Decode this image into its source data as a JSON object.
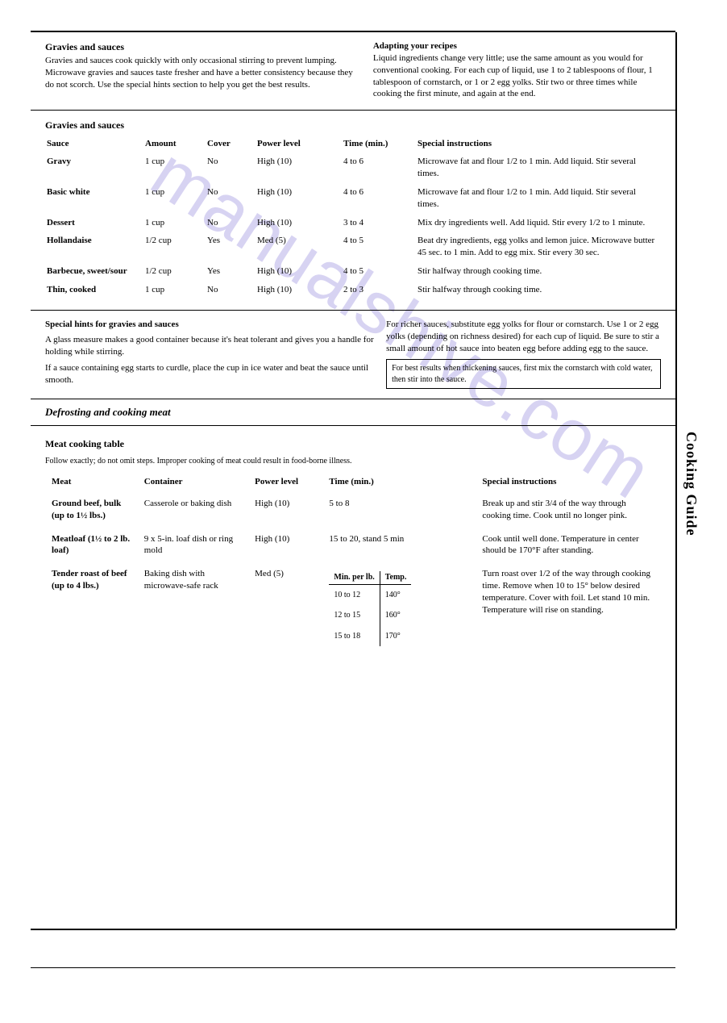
{
  "side_tab": "Cooking Guide",
  "watermark": "manualshive.com",
  "sauces": {
    "intro_title": "Gravies and sauces",
    "intro_text": "Gravies and sauces cook quickly with only occasional stirring to prevent lumping. Microwave gravies and sauces taste fresher and have a better consistency because they do not scorch. Use the special hints section to help you get the best results.",
    "intro_right_heading": "Adapting your recipes",
    "intro_right_text": "Liquid ingredients change very little; use the same amount as you would for conventional cooking. For each cup of liquid, use 1 to 2 tablespoons of flour, 1 tablespoon of cornstarch, or 1 or 2 egg yolks. Stir two or three times while cooking the first minute, and again at the end.",
    "table_heading": "Gravies and sauces",
    "cols": [
      "Sauce",
      "Amount",
      "Cover",
      "Power level",
      "Time (min.)",
      "Special instructions"
    ],
    "rows": [
      {
        "sauce": "Gravy",
        "amount": "1 cup",
        "cover": "No",
        "power": "High (10)",
        "time": "4 to 6",
        "instr": "Microwave fat and flour 1/2 to 1 min. Add liquid. Stir several times."
      },
      {
        "sauce": "Basic white",
        "amount": "1 cup",
        "cover": "No",
        "power": "High (10)",
        "time": "4 to 6",
        "instr": "Microwave fat and flour 1/2 to 1 min. Add liquid. Stir several times."
      },
      {
        "sauce": "Dessert",
        "amount": "1 cup",
        "cover": "No",
        "power": "High (10)",
        "time": "3 to 4",
        "instr": "Mix dry ingredients well. Add liquid. Stir every 1/2 to 1 minute."
      },
      {
        "sauce": "Hollandaise",
        "amount": "1/2 cup",
        "cover": "Yes",
        "power": "Med (5)",
        "time": "4 to 5",
        "instr": "Beat dry ingredients, egg yolks and lemon juice. Microwave butter 45 sec. to 1 min. Add to egg mix. Stir every 30 sec."
      },
      {
        "sauce": "Barbecue, sweet/sour",
        "amount": "1/2 cup",
        "cover": "Yes",
        "power": "High (10)",
        "time": "4 to 5",
        "instr": "Stir halfway through cooking time."
      },
      {
        "sauce": "Thin, cooked",
        "amount": "1 cup",
        "cover": "No",
        "power": "High (10)",
        "time": "2 to 3",
        "instr": "Stir halfway through cooking time."
      }
    ],
    "hints_title": "Special hints for gravies and sauces",
    "hints": [
      "A glass measure makes a good container because it's heat tolerant and gives you a handle for holding while stirring.",
      "If a sauce containing egg starts to curdle, place the cup in ice water and beat the sauce until smooth.",
      "For richer sauces, substitute egg yolks for flour or cornstarch. Use 1 or 2 egg yolks (depending on richness desired) for each cup of liquid. Be sure to stir a small amount of hot sauce into beaten egg before adding egg to the sauce."
    ],
    "hint_box": "For best results when thickening sauces, first mix the cornstarch with cold water, then stir into the sauce."
  },
  "defrost_heading": "Defrosting and cooking meat",
  "meat": {
    "title": "Meat cooking table",
    "subtitle": "Follow exactly; do not omit steps. Improper cooking of meat could result in food-borne illness.",
    "cols": [
      "Meat",
      "Container",
      "Power level",
      "Time (min.)",
      "Special instructions"
    ],
    "rows": [
      {
        "meat": "Ground beef, bulk (up to 1½ lbs.)",
        "container": "Casserole or baking dish",
        "power": "High (10)",
        "time": "5 to 8",
        "instr": "Break up and stir 3/4 of the way through cooking time. Cook until no longer pink."
      },
      {
        "meat": "Meatloaf (1½ to 2 lb. loaf)",
        "container": "9 x 5-in. loaf dish or ring mold",
        "power": "High (10)",
        "time": "15 to 20, stand 5 min",
        "instr": "Cook until well done. Temperature in center should be 170°F after standing."
      },
      {
        "meat": "Tender roast of beef (up to 4 lbs.)",
        "container": "Baking dish with microwave-safe rack",
        "power": "Med (5)",
        "table": {
          "head": [
            "Min. per lb.",
            "Temp."
          ],
          "rows": [
            [
              "10 to 12",
              "140°"
            ],
            [
              "12 to 15",
              "160°"
            ],
            [
              "15 to 18",
              "170°"
            ]
          ]
        },
        "instr": "Turn roast over 1/2 of the way through cooking time. Remove when 10 to 15° below desired temperature. Cover with foil. Let stand 10 min. Temperature will rise on standing."
      }
    ]
  }
}
